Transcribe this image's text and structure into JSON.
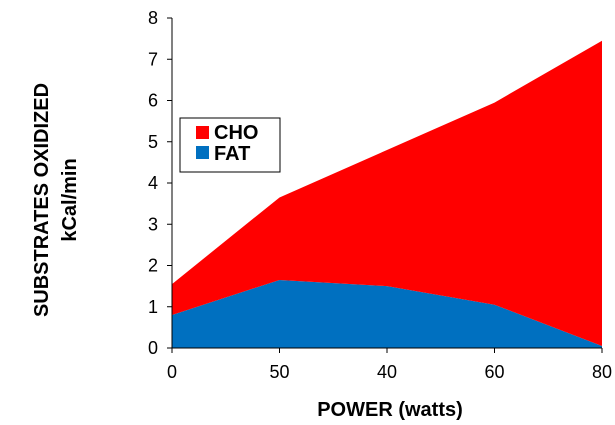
{
  "chart_data": {
    "type": "area",
    "stacked": true,
    "categories": [
      "0",
      "50",
      "40",
      "60",
      "80"
    ],
    "series": [
      {
        "name": "FAT",
        "color": "#0070C0",
        "values": [
          0.8,
          1.65,
          1.5,
          1.05,
          0.05
        ]
      },
      {
        "name": "CHO",
        "color": "#FF0000",
        "values": [
          0.75,
          2.0,
          3.3,
          4.9,
          7.4
        ]
      }
    ],
    "totals": [
      1.55,
      3.65,
      4.8,
      5.95,
      7.45
    ],
    "xlabel": "POWER (watts)",
    "ylabel_line1": "SUBSTRATES OXIDIZED",
    "ylabel_line2": "kCal/min",
    "ylim": [
      0,
      8
    ],
    "yticks": [
      "0",
      "1",
      "2",
      "3",
      "4",
      "5",
      "6",
      "7",
      "8"
    ],
    "legend": {
      "position": "upper-left",
      "order": [
        "CHO",
        "FAT"
      ]
    },
    "grid": false
  }
}
